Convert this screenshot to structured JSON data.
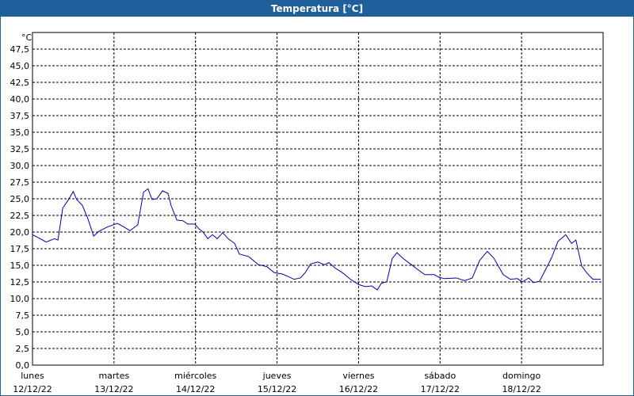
{
  "window_title": "Temperatura [°C]",
  "chart_data": {
    "type": "line",
    "y_unit_label": "°C",
    "x": [
      0,
      2.3,
      4,
      6.5,
      7.5,
      8.9,
      10.5,
      12,
      13,
      14.7,
      16.3,
      18,
      19.8,
      22.2,
      25,
      26.8,
      28.7,
      31,
      32.7,
      34,
      35.2,
      36.6,
      38.3,
      39.9,
      40.8,
      42.5,
      44.3,
      45.7,
      47.8,
      49,
      50.2,
      51.6,
      53,
      54.4,
      56,
      57.6,
      59.5,
      60.9,
      63.7,
      66.5,
      69,
      71.2,
      73.5,
      75.4,
      77,
      78.9,
      80.3,
      81.9,
      84,
      85.9,
      87.3,
      89.1,
      91.5,
      93.6,
      96.1,
      98,
      99.9,
      101.5,
      102.7,
      104.3,
      105.9,
      107.3,
      109.2,
      111.3,
      113.6,
      115.5,
      118.3,
      119.7,
      121.3,
      124.8,
      127.2,
      129.5,
      131.6,
      133.9,
      135.8,
      138.6,
      140.7,
      142.8,
      144.2,
      146.1,
      147.5,
      149.3,
      150.7,
      152.8,
      154.7,
      157,
      158.7,
      160,
      161.7,
      163.3,
      165,
      167.3
    ],
    "series": [
      {
        "name": "Temperatura",
        "color": "#0000aa",
        "values": [
          19.6,
          19.0,
          18.5,
          19.0,
          18.8,
          23.6,
          24.8,
          26.1,
          24.9,
          24.0,
          22.0,
          19.4,
          20.2,
          20.8,
          21.3,
          20.8,
          20.2,
          21.1,
          26.0,
          26.5,
          24.9,
          25.0,
          26.2,
          25.8,
          24.0,
          21.8,
          21.7,
          21.2,
          21.2,
          20.5,
          20.0,
          19.0,
          19.6,
          19.0,
          19.9,
          19.0,
          18.3,
          16.7,
          16.3,
          15.1,
          14.8,
          13.9,
          13.7,
          13.3,
          12.9,
          13.1,
          13.9,
          15.2,
          15.5,
          15.1,
          15.4,
          14.6,
          13.8,
          12.9,
          12.1,
          11.8,
          11.9,
          11.3,
          12.3,
          12.5,
          16.0,
          16.9,
          16.0,
          15.2,
          14.3,
          13.6,
          13.6,
          13.2,
          13.0,
          13.1,
          12.7,
          13.1,
          15.7,
          17.1,
          16.1,
          13.6,
          12.9,
          13.0,
          12.5,
          13.1,
          12.4,
          12.6,
          14.0,
          16.1,
          18.6,
          19.6,
          18.3,
          18.8,
          14.9,
          13.8,
          12.9,
          12.9
        ]
      }
    ],
    "xlim": [
      0,
      168
    ],
    "xticks": [
      {
        "value": 0,
        "label": "lunes"
      },
      {
        "value": 24,
        "label": "martes"
      },
      {
        "value": 48,
        "label": "miércoles"
      },
      {
        "value": 72,
        "label": "jueves"
      },
      {
        "value": 96,
        "label": "viernes"
      },
      {
        "value": 120,
        "label": "sábado"
      },
      {
        "value": 144,
        "label": "domingo"
      }
    ],
    "xtick_dates": [
      "12/12/22",
      "13/12/22",
      "14/12/22",
      "15/12/22",
      "16/12/22",
      "17/12/22",
      "18/12/22"
    ],
    "ylim": [
      0,
      50
    ],
    "yticks": [
      {
        "value": 0,
        "label": "0,0"
      },
      {
        "value": 2.5,
        "label": "2,5"
      },
      {
        "value": 5,
        "label": "5,0"
      },
      {
        "value": 7.5,
        "label": "7,5"
      },
      {
        "value": 10,
        "label": "10,0"
      },
      {
        "value": 12.5,
        "label": "12,5"
      },
      {
        "value": 15,
        "label": "15,0"
      },
      {
        "value": 17.5,
        "label": "17,5"
      },
      {
        "value": 20,
        "label": "20,0"
      },
      {
        "value": 22.5,
        "label": "22,5"
      },
      {
        "value": 25,
        "label": "25,0"
      },
      {
        "value": 27.5,
        "label": "27,5"
      },
      {
        "value": 30,
        "label": "30,0"
      },
      {
        "value": 32.5,
        "label": "32,5"
      },
      {
        "value": 35,
        "label": "35,0"
      },
      {
        "value": 37.5,
        "label": "37,5"
      },
      {
        "value": 40,
        "label": "40,0"
      },
      {
        "value": 42.5,
        "label": "42,5"
      },
      {
        "value": 45,
        "label": "45,0"
      },
      {
        "value": 47.5,
        "label": "47,5"
      }
    ],
    "grid": true
  }
}
